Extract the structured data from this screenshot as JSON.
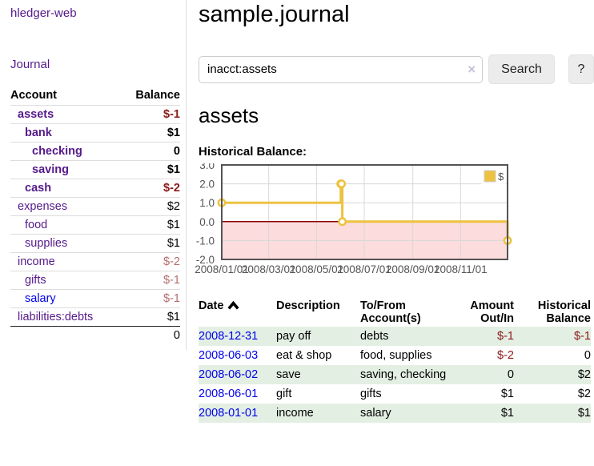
{
  "colors": {
    "link_visited_purple": "#551a8b",
    "link_unvisited_blue": "#0000ee",
    "negative_strong": "#8b1a1a",
    "negative_soft": "#b56d6d",
    "row_shaded_green": "#e3efe3",
    "series_gold": "#edc240",
    "negative_region_pink": "#fcdcdc",
    "zero_line_dark_red": "#8b0000"
  },
  "app": {
    "title": "hledger-web"
  },
  "sidebar": {
    "journal_link": "Journal",
    "accounts_table": {
      "account_header": "Account",
      "balance_header": "Balance",
      "rows": [
        {
          "name": "assets",
          "balance": "$-1",
          "level": 1,
          "bold": true,
          "negative": "strong",
          "link": "visited"
        },
        {
          "name": "bank",
          "balance": "$1",
          "level": 2,
          "bold": true,
          "negative": "none",
          "link": "visited"
        },
        {
          "name": "checking",
          "balance": "0",
          "level": 3,
          "bold": true,
          "negative": "none",
          "link": "visited"
        },
        {
          "name": "saving",
          "balance": "$1",
          "level": 3,
          "bold": true,
          "negative": "none",
          "link": "visited"
        },
        {
          "name": "cash",
          "balance": "$-2",
          "level": 2,
          "bold": true,
          "negative": "strong",
          "link": "visited"
        },
        {
          "name": "expenses",
          "balance": "$2",
          "level": 1,
          "bold": false,
          "negative": "none",
          "link": "visited"
        },
        {
          "name": "food",
          "balance": "$1",
          "level": 2,
          "bold": false,
          "negative": "none",
          "link": "visited"
        },
        {
          "name": "supplies",
          "balance": "$1",
          "level": 2,
          "bold": false,
          "negative": "none",
          "link": "visited"
        },
        {
          "name": "income",
          "balance": "$-2",
          "level": 1,
          "bold": false,
          "negative": "soft",
          "link": "visited"
        },
        {
          "name": "gifts",
          "balance": "$-1",
          "level": 2,
          "bold": false,
          "negative": "soft",
          "link": "visited"
        },
        {
          "name": "salary",
          "balance": "$-1",
          "level": 2,
          "bold": false,
          "negative": "soft",
          "link": "unvisited"
        },
        {
          "name": "liabilities:debts",
          "balance": "$1",
          "level": 1,
          "bold": false,
          "negative": "none",
          "link": "visited"
        }
      ],
      "total": "0"
    }
  },
  "main": {
    "title": "sample.journal",
    "search": {
      "value": "inacct:assets",
      "clear_icon": "×",
      "search_button": "Search",
      "help_button": "?"
    },
    "account_heading": "assets",
    "chart_label": "Historical Balance:"
  },
  "chart_data": {
    "type": "line",
    "step": true,
    "title": "Historical Balance",
    "series": [
      {
        "name": "$",
        "color": "#edc240",
        "points": [
          [
            "2008-01-01",
            1
          ],
          [
            "2008-06-01",
            2
          ],
          [
            "2008-06-02",
            2
          ],
          [
            "2008-06-03",
            0
          ],
          [
            "2008-12-31",
            -1
          ]
        ]
      }
    ],
    "xlim": [
      "2008-01-01",
      "2008-12-31"
    ],
    "ylim": [
      -2,
      3
    ],
    "x_ticks": [
      "2008/01/01",
      "2008/03/01",
      "2008/05/01",
      "2008/07/01",
      "2008/09/01",
      "2008/11/01"
    ],
    "y_ticks": [
      3,
      2,
      1,
      0,
      -1,
      -2
    ],
    "legend": [
      "$"
    ],
    "legend_position": "top-right",
    "grid": true,
    "negative_region_color": "#fcdcdc",
    "zero_line_color": "#8b0000"
  },
  "register": {
    "headers": [
      {
        "lines": [
          "Date"
        ],
        "align": "left",
        "sort": "asc"
      },
      {
        "lines": [
          "Description"
        ],
        "align": "left"
      },
      {
        "lines": [
          "To/From",
          "Account(s)"
        ],
        "align": "left"
      },
      {
        "lines": [
          "Amount",
          "Out/In"
        ],
        "align": "right"
      },
      {
        "lines": [
          "Historical",
          "Balance"
        ],
        "align": "right"
      }
    ],
    "rows": [
      {
        "date": "2008-12-31",
        "description": "pay off",
        "accounts": "debts",
        "amount": "$-1",
        "balance": "$-1",
        "shaded": true
      },
      {
        "date": "2008-06-03",
        "description": "eat & shop",
        "accounts": "food, supplies",
        "amount": "$-2",
        "balance": "0",
        "shaded": false
      },
      {
        "date": "2008-06-02",
        "description": "save",
        "accounts": "saving, checking",
        "amount": "0",
        "balance": "$2",
        "shaded": true
      },
      {
        "date": "2008-06-01",
        "description": "gift",
        "accounts": "gifts",
        "amount": "$1",
        "balance": "$2",
        "shaded": false
      },
      {
        "date": "2008-01-01",
        "description": "income",
        "accounts": "salary",
        "amount": "$1",
        "balance": "$1",
        "shaded": true
      }
    ]
  }
}
